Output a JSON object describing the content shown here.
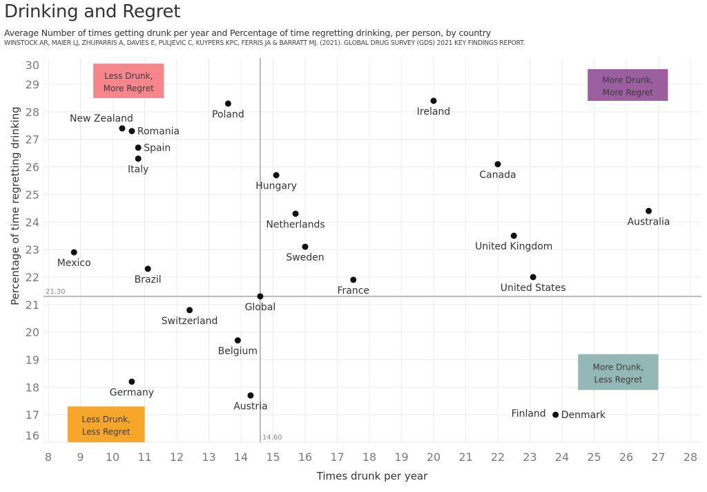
{
  "header": {
    "title": "Drinking and Regret",
    "subtitle": "Average Number of times getting drunk per year and Percentage of time regretting drinking, per person, by country",
    "source": "WINSTOCK AR, MAIER LJ, ZHUPARRIS A, DAVIES E, PULJEVIC C, KUYPERS KPC, FERRIS JA & BARRATT MJ. (2021). GLOBAL DRUG SURVEY (GDS) 2021 KEY FINDINGS REPORT."
  },
  "chart_data": {
    "type": "scatter",
    "title": "Drinking and Regret",
    "xlabel": "Times drunk per year",
    "ylabel": "Percentage of time regretting drinking",
    "xlim": [
      8,
      28
    ],
    "ylim": [
      16,
      30
    ],
    "x_ticks": [
      "8",
      "9",
      "10",
      "11",
      "12",
      "13",
      "14",
      "15",
      "16",
      "17",
      "18",
      "19",
      "20",
      "21",
      "22",
      "23",
      "24",
      "25",
      "26",
      "27",
      "28"
    ],
    "y_ticks": [
      "16",
      "17",
      "18",
      "19",
      "20",
      "21",
      "22",
      "23",
      "24",
      "25",
      "26",
      "27",
      "28",
      "29",
      "30"
    ],
    "grid": true,
    "reference_lines": {
      "x": {
        "value": 14.6,
        "label": "14.60"
      },
      "y": {
        "value": 21.3,
        "label": "21.30"
      }
    },
    "points": [
      {
        "label": "New Zealand",
        "x": 10.3,
        "y": 27.4,
        "pos": "above-left"
      },
      {
        "label": "Romania",
        "x": 10.6,
        "y": 27.3,
        "pos": "right"
      },
      {
        "label": "Spain",
        "x": 10.8,
        "y": 26.7,
        "pos": "right"
      },
      {
        "label": "Italy",
        "x": 10.8,
        "y": 26.3,
        "pos": "below"
      },
      {
        "label": "Poland",
        "x": 13.6,
        "y": 28.3,
        "pos": "below"
      },
      {
        "label": "Ireland",
        "x": 20.0,
        "y": 28.4,
        "pos": "below"
      },
      {
        "label": "Canada",
        "x": 22.0,
        "y": 26.1,
        "pos": "below"
      },
      {
        "label": "Hungary",
        "x": 15.1,
        "y": 25.7,
        "pos": "below"
      },
      {
        "label": "Netherlands",
        "x": 15.7,
        "y": 24.3,
        "pos": "below"
      },
      {
        "label": "Australia",
        "x": 26.7,
        "y": 24.4,
        "pos": "below"
      },
      {
        "label": "United Kingdom",
        "x": 22.5,
        "y": 23.5,
        "pos": "below"
      },
      {
        "label": "Mexico",
        "x": 8.8,
        "y": 22.9,
        "pos": "below"
      },
      {
        "label": "Sweden",
        "x": 16.0,
        "y": 23.1,
        "pos": "below"
      },
      {
        "label": "Brazil",
        "x": 11.1,
        "y": 22.3,
        "pos": "below"
      },
      {
        "label": "United States",
        "x": 23.1,
        "y": 22.0,
        "pos": "below"
      },
      {
        "label": "France",
        "x": 17.5,
        "y": 21.9,
        "pos": "below"
      },
      {
        "label": "Global",
        "x": 14.6,
        "y": 21.3,
        "pos": "below"
      },
      {
        "label": "Switzerland",
        "x": 12.4,
        "y": 20.8,
        "pos": "below"
      },
      {
        "label": "Belgium",
        "x": 13.9,
        "y": 19.7,
        "pos": "below"
      },
      {
        "label": "Germany",
        "x": 10.6,
        "y": 18.2,
        "pos": "below"
      },
      {
        "label": "Austria",
        "x": 14.3,
        "y": 17.7,
        "pos": "below"
      },
      {
        "label": "Denmark",
        "x": 23.8,
        "y": 17.0,
        "pos": "right"
      },
      {
        "label": "Finland",
        "x": 23.8,
        "y": 17.0,
        "pos": "left"
      }
    ],
    "quadrant_labels": [
      {
        "line1": "Less Drunk,",
        "line2": "More Regret",
        "color": "#f4868c",
        "x0": 9.4,
        "x1": 11.6,
        "y0": 28.5,
        "y1": 29.75
      },
      {
        "line1": "More Drunk,",
        "line2": "More Regret",
        "color": "#9b5e9e",
        "x0": 24.8,
        "x1": 27.3,
        "y0": 28.4,
        "y1": 29.55
      },
      {
        "line1": "More Drunk,",
        "line2": "Less Regret",
        "color": "#94b8b5",
        "x0": 24.5,
        "x1": 27.0,
        "y0": 17.9,
        "y1": 19.2
      },
      {
        "line1": "Less Drunk,",
        "line2": "Less Regret",
        "color": "#f6a72a",
        "x0": 8.6,
        "x1": 11.0,
        "y0": 16.0,
        "y1": 17.3
      }
    ]
  }
}
